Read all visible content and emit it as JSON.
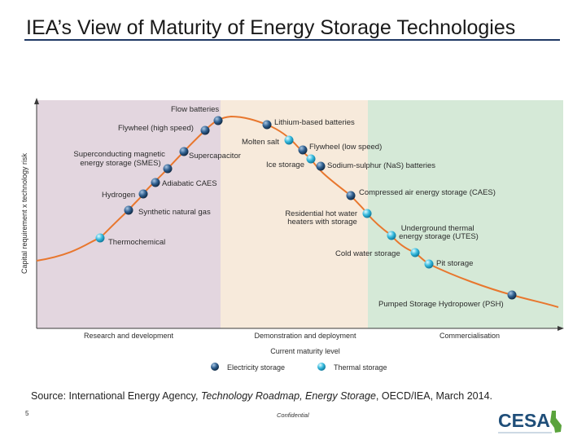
{
  "title": "IEA’s View of Maturity of Energy Storage Technologies",
  "diagram": {
    "y_axis_label": "Capital requirement x technology risk",
    "x_axis_label": "Current maturity level",
    "zones": [
      {
        "label": "Research and development",
        "color": "#e3d6df"
      },
      {
        "label": "Demonstration and deployment",
        "color": "#f7eadb"
      },
      {
        "label": "Commercialisation",
        "color": "#d5e9d7"
      }
    ],
    "curve_color": "#e8772e",
    "legend": [
      {
        "label": "Electricity storage",
        "type": "electricity"
      },
      {
        "label": "Thermal storage",
        "type": "thermal"
      }
    ],
    "technologies": [
      {
        "name": "Thermochemical",
        "type": "thermal"
      },
      {
        "name": "Synthetic natural gas",
        "type": "electricity"
      },
      {
        "name": "Hydrogen",
        "type": "electricity"
      },
      {
        "name": "Adiabatic CAES",
        "type": "electricity"
      },
      {
        "name": "Superconducting magnetic energy storage (SMES)",
        "type": "electricity"
      },
      {
        "name": "Supercapacitor",
        "type": "electricity"
      },
      {
        "name": "Flywheel (high speed)",
        "type": "electricity"
      },
      {
        "name": "Flow batteries",
        "type": "electricity"
      },
      {
        "name": "Lithium-based batteries",
        "type": "electricity"
      },
      {
        "name": "Molten salt",
        "type": "thermal"
      },
      {
        "name": "Flywheel (low speed)",
        "type": "electricity"
      },
      {
        "name": "Ice storage",
        "type": "thermal"
      },
      {
        "name": "Sodium-sulphur (NaS) batteries",
        "type": "electricity"
      },
      {
        "name": "Compressed air energy storage (CAES)",
        "type": "electricity"
      },
      {
        "name": "Residential hot water heaters with storage",
        "type": "thermal"
      },
      {
        "name": "Underground thermal energy storage (UTES)",
        "type": "thermal"
      },
      {
        "name": "Cold water storage",
        "type": "thermal"
      },
      {
        "name": "Pit storage",
        "type": "thermal"
      },
      {
        "name": "Pumped Storage Hydropower (PSH)",
        "type": "electricity"
      }
    ]
  },
  "source": {
    "prefix": "Source: International Energy Agency, ",
    "italic": "Technology Roadmap, Energy Storage",
    "suffix": ", OECD/IEA, March 2014."
  },
  "footer": {
    "page_number": "5",
    "confidential": "Confidential"
  },
  "logo": {
    "text": "CESA",
    "tagline": "CALIFORNIA ENERGY STORAGE ALLIANCE",
    "color": "#1f4e79",
    "accent": "#5aa33c"
  }
}
